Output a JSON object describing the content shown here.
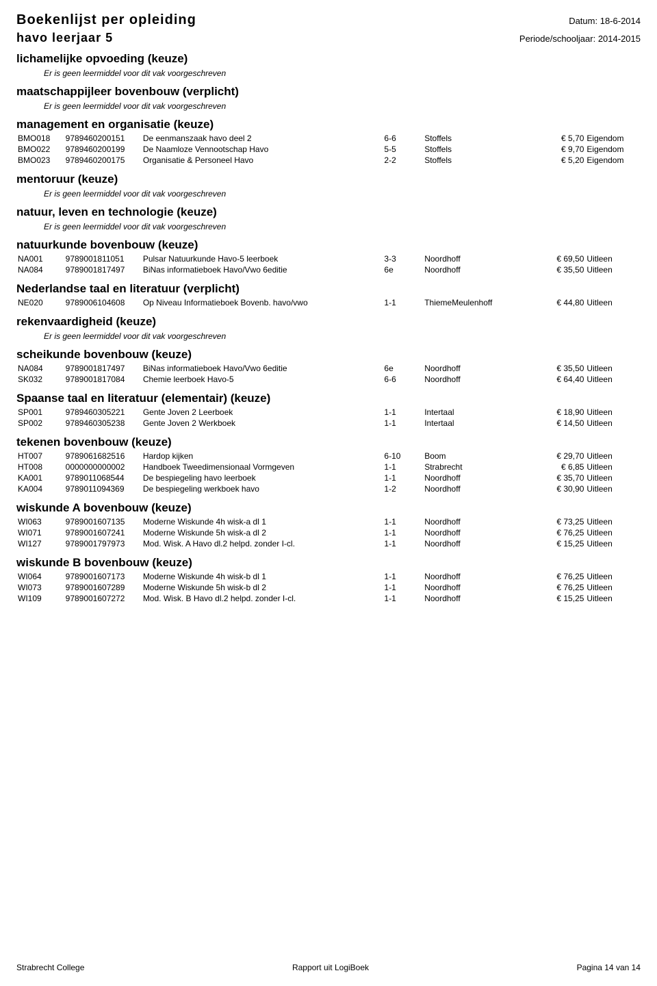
{
  "header": {
    "title": "Boekenlijst per opleiding",
    "date_label": "Datum:",
    "date_value": "18-6-2014",
    "subtitle": "havo leerjaar 5",
    "period_label": "Periode/schooljaar:",
    "period_value": "2014-2015"
  },
  "no_learn_text": "Er is geen leermiddel voor dit vak voorgeschreven",
  "sections": [
    {
      "heading": "lichamelijke opvoeding (keuze)",
      "no_learn": true,
      "rows": []
    },
    {
      "heading": "maatschappijleer bovenbouw (verplicht)",
      "no_learn": true,
      "rows": []
    },
    {
      "heading": "management en organisatie (keuze)",
      "no_learn": false,
      "rows": [
        {
          "code": "BMO018",
          "isbn": "9789460200151",
          "title": "De eenmanszaak havo deel 2",
          "ed": "6-6",
          "pub": "Stoffels",
          "price": "€ 5,70",
          "own": "Eigendom"
        },
        {
          "code": "BMO022",
          "isbn": "9789460200199",
          "title": "De Naamloze Vennootschap Havo",
          "ed": "5-5",
          "pub": "Stoffels",
          "price": "€ 9,70",
          "own": "Eigendom"
        },
        {
          "code": "BMO023",
          "isbn": "9789460200175",
          "title": "Organisatie & Personeel Havo",
          "ed": "2-2",
          "pub": "Stoffels",
          "price": "€ 5,20",
          "own": "Eigendom"
        }
      ]
    },
    {
      "heading": "mentoruur (keuze)",
      "no_learn": true,
      "rows": []
    },
    {
      "heading": "natuur, leven en technologie (keuze)",
      "no_learn": true,
      "rows": []
    },
    {
      "heading": "natuurkunde bovenbouw (keuze)",
      "no_learn": false,
      "rows": [
        {
          "code": "NA001",
          "isbn": "9789001811051",
          "title": "Pulsar Natuurkunde Havo-5 leerboek",
          "ed": "3-3",
          "pub": "Noordhoff",
          "price": "€ 69,50",
          "own": "Uitleen"
        },
        {
          "code": "NA084",
          "isbn": "9789001817497",
          "title": "BiNas informatieboek Havo/Vwo 6editie",
          "ed": "6e",
          "pub": "Noordhoff",
          "price": "€ 35,50",
          "own": "Uitleen"
        }
      ]
    },
    {
      "heading": "Nederlandse taal en literatuur (verplicht)",
      "no_learn": false,
      "rows": [
        {
          "code": "NE020",
          "isbn": "9789006104608",
          "title": "Op Niveau Informatieboek Bovenb. havo/vwo",
          "ed": "1-1",
          "pub": "ThiemeMeulenhoff",
          "price": "€ 44,80",
          "own": "Uitleen"
        }
      ]
    },
    {
      "heading": "rekenvaardigheid (keuze)",
      "no_learn": true,
      "rows": []
    },
    {
      "heading": "scheikunde bovenbouw (keuze)",
      "no_learn": false,
      "rows": [
        {
          "code": "NA084",
          "isbn": "9789001817497",
          "title": "BiNas informatieboek Havo/Vwo 6editie",
          "ed": "6e",
          "pub": "Noordhoff",
          "price": "€ 35,50",
          "own": "Uitleen"
        },
        {
          "code": "SK032",
          "isbn": "9789001817084",
          "title": "Chemie leerboek Havo-5",
          "ed": "6-6",
          "pub": "Noordhoff",
          "price": "€ 64,40",
          "own": "Uitleen"
        }
      ]
    },
    {
      "heading": "Spaanse taal en literatuur (elementair) (keuze)",
      "no_learn": false,
      "rows": [
        {
          "code": "SP001",
          "isbn": "9789460305221",
          "title": "Gente Joven 2 Leerboek",
          "ed": "1-1",
          "pub": "Intertaal",
          "price": "€ 18,90",
          "own": "Uitleen"
        },
        {
          "code": "SP002",
          "isbn": "9789460305238",
          "title": "Gente Joven 2 Werkboek",
          "ed": "1-1",
          "pub": "Intertaal",
          "price": "€ 14,50",
          "own": "Uitleen"
        }
      ]
    },
    {
      "heading": "tekenen bovenbouw (keuze)",
      "no_learn": false,
      "rows": [
        {
          "code": "HT007",
          "isbn": "9789061682516",
          "title": "Hardop kijken",
          "ed": "6-10",
          "pub": "Boom",
          "price": "€ 29,70",
          "own": "Uitleen"
        },
        {
          "code": "HT008",
          "isbn": "0000000000002",
          "title": "Handboek Tweedimensionaal Vormgeven",
          "ed": "1-1",
          "pub": "Strabrecht",
          "price": "€ 6,85",
          "own": "Uitleen"
        },
        {
          "code": "KA001",
          "isbn": "9789011068544",
          "title": "De bespiegeling havo leerboek",
          "ed": "1-1",
          "pub": "Noordhoff",
          "price": "€ 35,70",
          "own": "Uitleen"
        },
        {
          "code": "KA004",
          "isbn": "9789011094369",
          "title": "De bespiegeling werkboek havo",
          "ed": "1-2",
          "pub": "Noordhoff",
          "price": "€ 30,90",
          "own": "Uitleen"
        }
      ]
    },
    {
      "heading": "wiskunde A bovenbouw (keuze)",
      "no_learn": false,
      "rows": [
        {
          "code": "WI063",
          "isbn": "9789001607135",
          "title": "Moderne Wiskunde 4h wisk-a dl 1",
          "ed": "1-1",
          "pub": "Noordhoff",
          "price": "€ 73,25",
          "own": "Uitleen"
        },
        {
          "code": "WI071",
          "isbn": "9789001607241",
          "title": "Moderne Wiskunde 5h wisk-a dl 2",
          "ed": "1-1",
          "pub": "Noordhoff",
          "price": "€ 76,25",
          "own": "Uitleen"
        },
        {
          "code": "WI127",
          "isbn": "9789001797973",
          "title": "Mod. Wisk. A Havo dl.2 helpd. zonder I-cl.",
          "ed": "1-1",
          "pub": "Noordhoff",
          "price": "€ 15,25",
          "own": "Uitleen"
        }
      ]
    },
    {
      "heading": "wiskunde B bovenbouw (keuze)",
      "no_learn": false,
      "rows": [
        {
          "code": "WI064",
          "isbn": "9789001607173",
          "title": "Moderne Wiskunde 4h wisk-b dl 1",
          "ed": "1-1",
          "pub": "Noordhoff",
          "price": "€ 76,25",
          "own": "Uitleen"
        },
        {
          "code": "WI073",
          "isbn": "9789001607289",
          "title": "Moderne Wiskunde 5h wisk-b dl 2",
          "ed": "1-1",
          "pub": "Noordhoff",
          "price": "€ 76,25",
          "own": "Uitleen"
        },
        {
          "code": "WI109",
          "isbn": "9789001607272",
          "title": "Mod. Wisk. B Havo dl.2 helpd. zonder I-cl.",
          "ed": "1-1",
          "pub": "Noordhoff",
          "price": "€ 15,25",
          "own": "Uitleen"
        }
      ]
    }
  ],
  "footer": {
    "left": "Strabrecht College",
    "center": "Rapport uit LogiBoek",
    "right": "Pagina 14 van  14"
  }
}
